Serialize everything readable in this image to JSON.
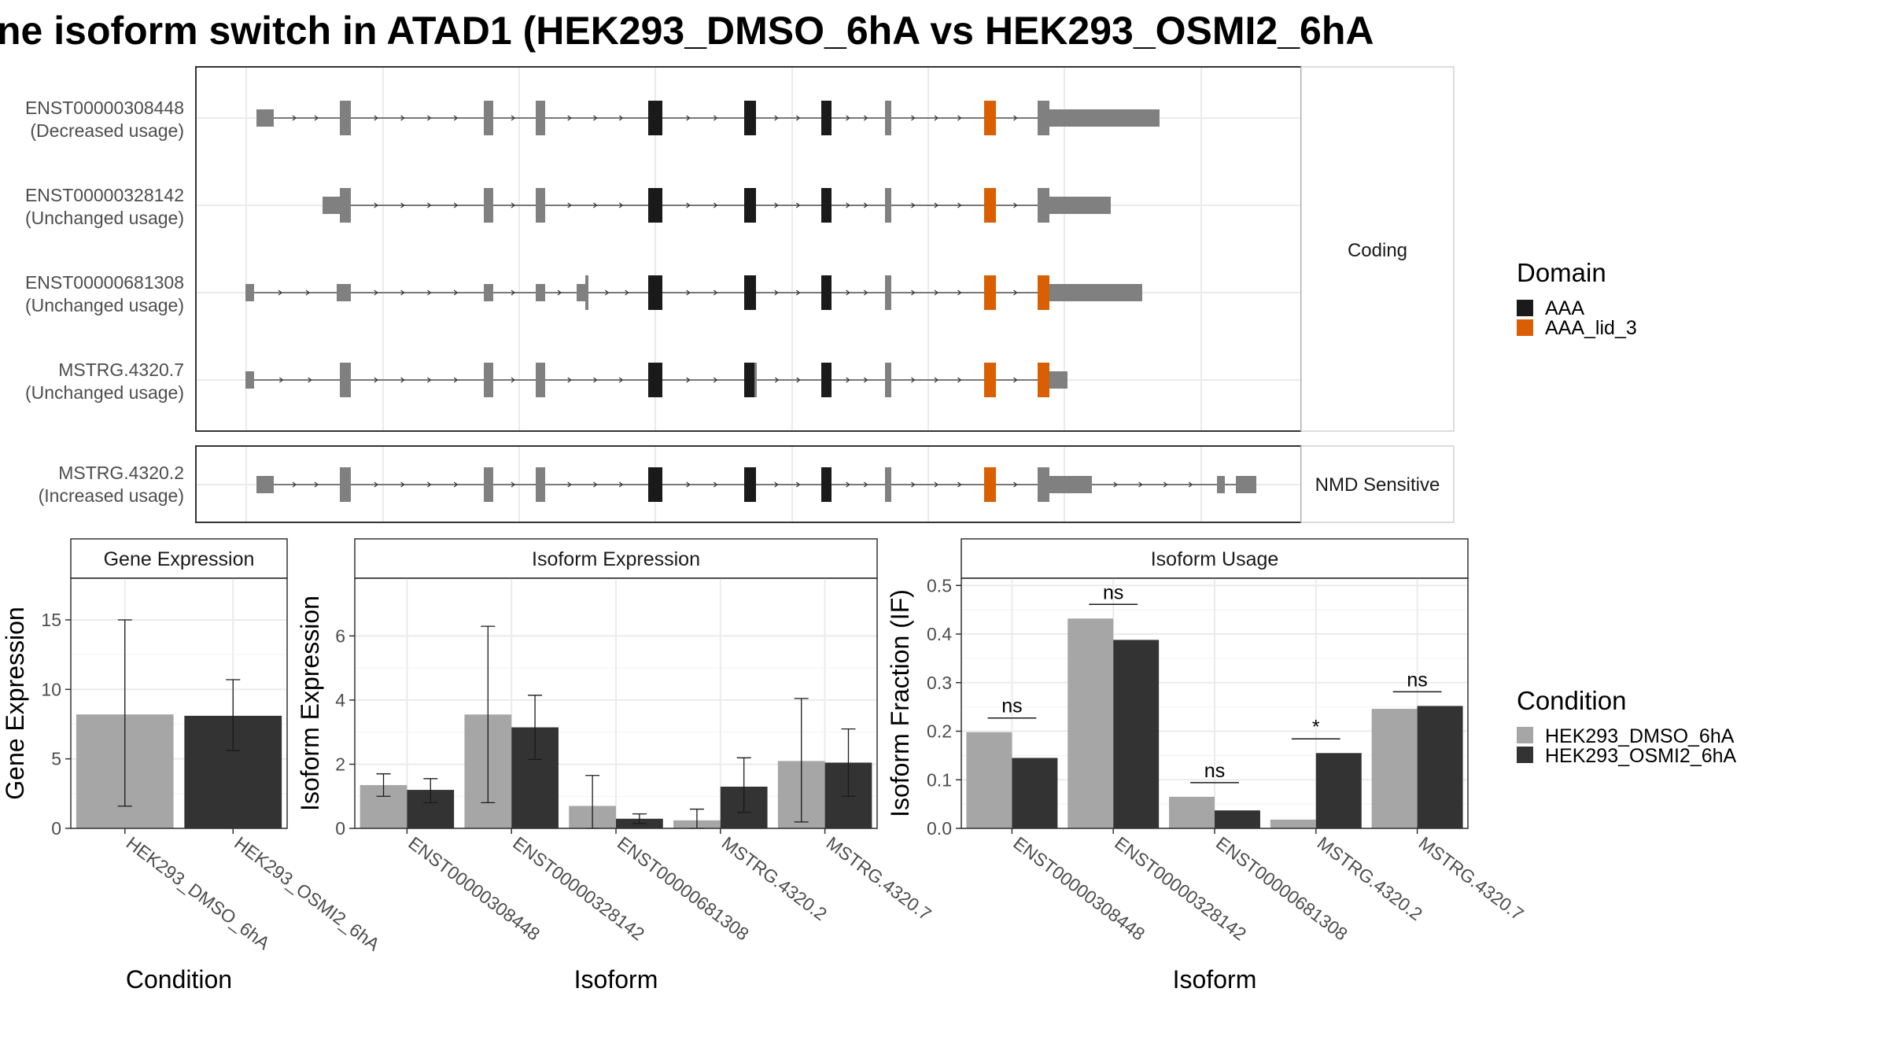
{
  "title": "ne isoform switch in ATAD1 (HEK293_DMSO_6hA vs HEK293_OSMI2_6hA",
  "colors": {
    "exon": "#808080",
    "aaa": "#1a1a1a",
    "aaa_lid_3": "#d95f02",
    "dmso": "#a6a6a6",
    "osmi2": "#333333",
    "strip_text": "#1a1a1a",
    "grid": "#ebebeb",
    "panel_border": "#333333"
  },
  "structure": {
    "domain_legend": {
      "title": "Domain",
      "items": [
        {
          "label": "AAA",
          "color": "#1a1a1a"
        },
        {
          "label": "AAA_lid_3",
          "color": "#d95f02"
        }
      ]
    },
    "groups": [
      {
        "strip": "Coding",
        "isoforms": [
          {
            "name": "ENST00000308448",
            "usage": "(Decreased usage)"
          },
          {
            "name": "ENST00000328142",
            "usage": "(Unchanged usage)"
          },
          {
            "name": "ENST00000681308",
            "usage": "(Unchanged usage)"
          },
          {
            "name": "MSTRG.4320.7",
            "usage": "(Unchanged usage)"
          }
        ]
      },
      {
        "strip": "NMD Sensitive",
        "isoforms": [
          {
            "name": "MSTRG.4320.2",
            "usage": "(Increased usage)"
          }
        ]
      }
    ]
  },
  "chart_data": [
    {
      "type": "bar",
      "title": "Gene Expression",
      "xlabel": "Condition",
      "ylabel": "Gene Expression",
      "ylim": [
        0,
        18
      ],
      "yticks": [
        0,
        5,
        10,
        15
      ],
      "categories": [
        "HEK293_DMSO_6hA",
        "HEK293_OSMI2_6hA"
      ],
      "series": [
        {
          "name": "HEK293_DMSO_6hA",
          "values": [
            8.2,
            null
          ],
          "error": [
            [
              1.6,
              15.0
            ],
            null
          ]
        },
        {
          "name": "HEK293_OSMI2_6hA",
          "values": [
            null,
            8.1
          ],
          "error": [
            null,
            [
              5.6,
              10.7
            ]
          ]
        }
      ]
    },
    {
      "type": "bar",
      "title": "Isoform Expression",
      "xlabel": "Isoform",
      "ylabel": "Isoform Expression",
      "ylim": [
        0,
        7.8
      ],
      "yticks": [
        0,
        2,
        4,
        6
      ],
      "categories": [
        "ENST00000308448",
        "ENST00000328142",
        "ENST00000681308",
        "MSTRG.4320.2",
        "MSTRG.4320.7"
      ],
      "series": [
        {
          "name": "HEK293_DMSO_6hA",
          "values": [
            1.35,
            3.55,
            0.7,
            0.25,
            2.1
          ],
          "error": [
            [
              1.0,
              1.7
            ],
            [
              0.8,
              6.3
            ],
            [
              0.0,
              1.65
            ],
            [
              0.0,
              0.6
            ],
            [
              0.2,
              4.05
            ]
          ]
        },
        {
          "name": "HEK293_OSMI2_6hA",
          "values": [
            1.2,
            3.15,
            0.3,
            1.3,
            2.05
          ],
          "error": [
            [
              0.8,
              1.55
            ],
            [
              2.15,
              4.15
            ],
            [
              0.15,
              0.45
            ],
            [
              0.5,
              2.2
            ],
            [
              1.0,
              3.1
            ]
          ]
        }
      ]
    },
    {
      "type": "bar",
      "title": "Isoform Usage",
      "xlabel": "Isoform",
      "ylabel": "Isoform Fraction (IF)",
      "ylim": [
        0,
        0.515
      ],
      "yticks": [
        0.0,
        0.1,
        0.2,
        0.3,
        0.4,
        0.5
      ],
      "ytick_labels": [
        "0.0",
        "0.1",
        "0.2",
        "0.3",
        "0.4",
        "0.5"
      ],
      "categories": [
        "ENST00000308448",
        "ENST00000328142",
        "ENST00000681308",
        "MSTRG.4320.2",
        "MSTRG.4320.7"
      ],
      "significance": [
        "ns",
        "ns",
        "ns",
        "*",
        "ns"
      ],
      "series": [
        {
          "name": "HEK293_DMSO_6hA",
          "values": [
            0.198,
            0.432,
            0.065,
            0.018,
            0.246
          ]
        },
        {
          "name": "HEK293_OSMI2_6hA",
          "values": [
            0.145,
            0.388,
            0.037,
            0.155,
            0.252
          ]
        }
      ]
    }
  ],
  "condition_legend": {
    "title": "Condition",
    "items": [
      {
        "label": "HEK293_DMSO_6hA",
        "color": "#a6a6a6"
      },
      {
        "label": "HEK293_OSMI2_6hA",
        "color": "#333333"
      }
    ]
  }
}
